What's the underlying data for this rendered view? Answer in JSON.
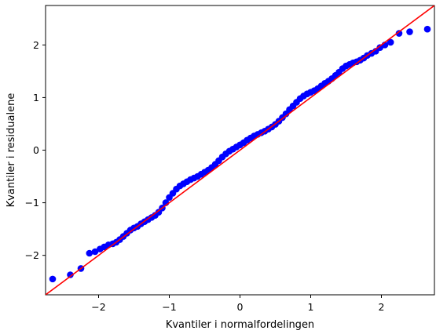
{
  "chart_data": {
    "type": "scatter",
    "title": "",
    "xlabel": "Kvantiler i normalfordelingen",
    "ylabel": "Kvantiler i residualene",
    "xlim": [
      -2.75,
      2.75
    ],
    "ylim": [
      -2.75,
      2.75
    ],
    "xticks": [
      -2,
      -1,
      0,
      1,
      2
    ],
    "yticks": [
      -2,
      -1,
      0,
      1,
      2
    ],
    "xtick_labels": [
      "−2",
      "−1",
      "0",
      "1",
      "2"
    ],
    "ytick_labels": [
      "−2",
      "−1",
      "0",
      "1",
      "2"
    ],
    "grid": false,
    "marker_color": "#0000ff",
    "line_color": "#ff0000",
    "reference_line": {
      "slope": 1.0,
      "intercept": 0.0
    },
    "points": {
      "x": [
        -2.65,
        -2.4,
        -2.25,
        -2.13,
        -2.05,
        -1.98,
        -1.92,
        -1.86,
        -1.8,
        -1.75,
        -1.7,
        -1.65,
        -1.6,
        -1.55,
        -1.5,
        -1.45,
        -1.4,
        -1.35,
        -1.3,
        -1.25,
        -1.2,
        -1.15,
        -1.1,
        -1.05,
        -1.0,
        -0.95,
        -0.9,
        -0.85,
        -0.8,
        -0.75,
        -0.7,
        -0.65,
        -0.6,
        -0.55,
        -0.5,
        -0.45,
        -0.4,
        -0.35,
        -0.3,
        -0.25,
        -0.2,
        -0.15,
        -0.1,
        -0.05,
        0.0,
        0.05,
        0.1,
        0.15,
        0.2,
        0.25,
        0.3,
        0.35,
        0.4,
        0.45,
        0.5,
        0.55,
        0.6,
        0.65,
        0.7,
        0.75,
        0.8,
        0.85,
        0.9,
        0.95,
        1.0,
        1.05,
        1.1,
        1.15,
        1.2,
        1.25,
        1.3,
        1.35,
        1.4,
        1.45,
        1.5,
        1.55,
        1.6,
        1.65,
        1.7,
        1.75,
        1.8,
        1.86,
        1.92,
        1.98,
        2.05,
        2.13,
        2.25,
        2.4,
        2.65
      ],
      "y": [
        -2.45,
        -2.37,
        -2.25,
        -1.96,
        -1.93,
        -1.88,
        -1.84,
        -1.8,
        -1.78,
        -1.75,
        -1.7,
        -1.64,
        -1.58,
        -1.52,
        -1.48,
        -1.45,
        -1.4,
        -1.36,
        -1.32,
        -1.28,
        -1.24,
        -1.18,
        -1.1,
        -1.0,
        -0.9,
        -0.82,
        -0.74,
        -0.68,
        -0.64,
        -0.6,
        -0.56,
        -0.53,
        -0.5,
        -0.46,
        -0.42,
        -0.38,
        -0.33,
        -0.27,
        -0.2,
        -0.13,
        -0.07,
        -0.02,
        0.02,
        0.06,
        0.1,
        0.14,
        0.19,
        0.23,
        0.27,
        0.3,
        0.33,
        0.36,
        0.4,
        0.44,
        0.49,
        0.55,
        0.62,
        0.69,
        0.77,
        0.84,
        0.91,
        0.98,
        1.03,
        1.07,
        1.1,
        1.13,
        1.17,
        1.22,
        1.27,
        1.31,
        1.36,
        1.42,
        1.48,
        1.55,
        1.6,
        1.63,
        1.66,
        1.68,
        1.71,
        1.75,
        1.8,
        1.84,
        1.88,
        1.95,
        2.0,
        2.05,
        2.22,
        2.25,
        2.3
      ]
    }
  }
}
